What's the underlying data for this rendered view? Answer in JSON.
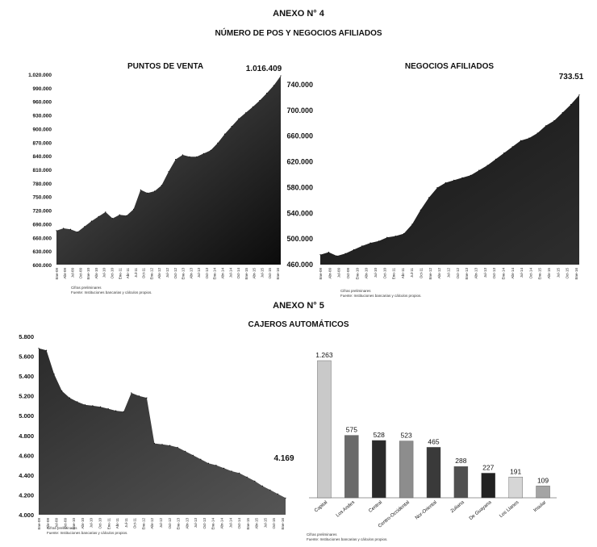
{
  "headers": {
    "anexo4": "ANEXO N° 4",
    "anexo4_title": "NÚMERO DE POS Y NEGOCIOS AFILIADOS",
    "anexo5": "ANEXO N° 5",
    "anexo5_title": "CAJEROS AUTOMÁTICOS"
  },
  "chart_data": [
    {
      "type": "area",
      "title": "PUNTOS DE VENTA",
      "last_label": "1.016.409",
      "ylim": [
        600000,
        1020000
      ],
      "yticks": [
        "1.020.000",
        "990.000",
        "960.000",
        "930.000",
        "900.000",
        "870.000",
        "840.000",
        "810.000",
        "780.000",
        "750.000",
        "720.000",
        "690.000",
        "660.000",
        "630.000",
        "600.000"
      ],
      "x_labels": [
        "Ene-09",
        "Abr-09",
        "Jul-09",
        "Oct-09",
        "Ene-10",
        "Abr-10",
        "Jul-10",
        "Oct-10",
        "Ene-11",
        "Abr-11",
        "Jul-11",
        "Oct-11",
        "Ene-12",
        "Abr-12",
        "Jul-12",
        "Oct-12",
        "Ene-13",
        "Abr-13",
        "Jul-13",
        "Oct-13",
        "Ene-14",
        "Abr-14",
        "Jul-14",
        "Oct-14",
        "Ene-15",
        "Abr-15",
        "Jul-15",
        "Oct-15",
        "Ene-16"
      ],
      "values": [
        675000,
        680000,
        678000,
        672000,
        684000,
        696000,
        706000,
        716000,
        702000,
        710000,
        708000,
        722000,
        765000,
        758000,
        762000,
        775000,
        805000,
        832000,
        842000,
        838000,
        838000,
        845000,
        852000,
        868000,
        888000,
        905000,
        922000,
        935000,
        948000,
        962000,
        978000,
        995000,
        1016409
      ],
      "notes": [
        "Cifras preliminares",
        "Fuente: Instituciones bancarias y cálculos propios."
      ]
    },
    {
      "type": "area",
      "title": "NEGOCIOS AFILIADOS",
      "last_label": "733.51",
      "ylim": [
        460000,
        750000
      ],
      "yticks": [
        "740.000",
        "700.000",
        "660.000",
        "620.000",
        "580.000",
        "540.000",
        "500.000",
        "460.000"
      ],
      "x_labels": [
        "Ene-09",
        "Abr-09",
        "Jul-09",
        "Oct-09",
        "Ene-10",
        "Abr-10",
        "Jul-10",
        "Oct-10",
        "Ene-11",
        "Abr-11",
        "Jul-11",
        "Oct-11",
        "Ene-12",
        "Abr-12",
        "Jul-12",
        "Oct-12",
        "Ene-13",
        "Abr-13",
        "Jul-13",
        "Oct-13",
        "Ene-14",
        "Abr-14",
        "Jul-14",
        "Oct-14",
        "Ene-15",
        "Abr-15",
        "Jul-15",
        "Oct-15",
        "Ene-16"
      ],
      "values": [
        476000,
        480000,
        474000,
        478000,
        484000,
        490000,
        495000,
        498000,
        504000,
        506000,
        510000,
        525000,
        548000,
        568000,
        584000,
        592000,
        596000,
        600000,
        604000,
        612000,
        620000,
        630000,
        640000,
        650000,
        660000,
        664000,
        672000,
        684000,
        692000,
        705000,
        718000,
        733510
      ],
      "notes": [
        "Cifras preliminares",
        "Fuente: Instituciones bancarias y cálculos propios."
      ]
    },
    {
      "type": "area",
      "title": "",
      "last_label": "4.169",
      "ylim": [
        4000,
        5800
      ],
      "yticks": [
        "5.800",
        "5.600",
        "5.400",
        "5.200",
        "5.000",
        "4.800",
        "4.600",
        "4.400",
        "4.200",
        "4.000"
      ],
      "x_labels": [
        "Ene-09",
        "Abr-09",
        "Jul-09",
        "Oct-09",
        "Ene-10",
        "Abr-10",
        "Jul-10",
        "Oct-10",
        "Ene-11",
        "Abr-11",
        "Jul-11",
        "Oct-11",
        "Ene-12",
        "Abr-12",
        "Jul-12",
        "Oct-12",
        "Ene-13",
        "Abr-13",
        "Jul-13",
        "Oct-13",
        "Ene-14",
        "Abr-14",
        "Jul-14",
        "Oct-14",
        "Ene-15",
        "Abr-15",
        "Jul-15",
        "Oct-15",
        "Ene-16"
      ],
      "values": [
        5680,
        5660,
        5420,
        5250,
        5180,
        5140,
        5110,
        5100,
        5090,
        5070,
        5050,
        5040,
        5230,
        5200,
        5180,
        4720,
        4710,
        4700,
        4680,
        4640,
        4600,
        4560,
        4520,
        4500,
        4470,
        4440,
        4420,
        4380,
        4340,
        4290,
        4250,
        4210,
        4169
      ],
      "notes": [
        "Cifras preliminares",
        "Fuente: Instituciones bancarias y cálculos propios."
      ]
    },
    {
      "type": "bar",
      "title": "",
      "categories": [
        "Capital",
        "Los Andes",
        "Central",
        "Centro-Occidental",
        "Nor-Oriental",
        "Zuliana",
        "De Guayana",
        "Los Llanos",
        "Insular"
      ],
      "values": [
        1263,
        575,
        528,
        523,
        465,
        288,
        227,
        191,
        109
      ],
      "value_labels": [
        "1.263",
        "575",
        "528",
        "523",
        "465",
        "288",
        "227",
        "191",
        "109"
      ],
      "colors": [
        "#c9c9c9",
        "#6a6a6a",
        "#2a2a2a",
        "#8d8d8d",
        "#3a3a3a",
        "#505050",
        "#222222",
        "#d6d6d6",
        "#a4a4a4"
      ],
      "notes": [
        "Cifras preliminares",
        "Fuente: Instituciones bancarias y cálculos propios."
      ]
    }
  ]
}
